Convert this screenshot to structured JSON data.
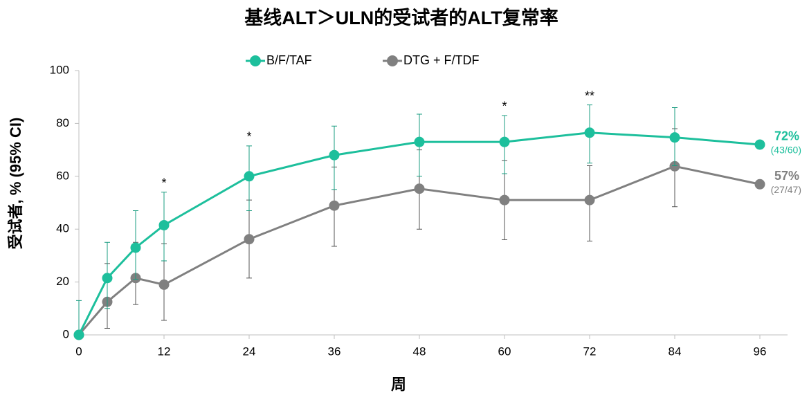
{
  "chart_data": {
    "type": "line",
    "title": "基线ALT＞ULN的受试者的ALT复常率",
    "x_label": "周",
    "y_label": "受试者, % (95% CI)",
    "x": [
      0,
      4,
      8,
      12,
      24,
      36,
      48,
      60,
      72,
      84,
      96
    ],
    "xlim": [
      0,
      100
    ],
    "xticks": [
      0,
      12,
      24,
      36,
      48,
      60,
      72,
      84,
      96
    ],
    "ylim": [
      0,
      100
    ],
    "yticks": [
      0,
      20,
      40,
      60,
      80,
      100
    ],
    "grid": false,
    "legend": "top",
    "series": [
      {
        "name": "B/F/TAF",
        "color": "#1dbf9c",
        "values": [
          0,
          21.5,
          33,
          41.5,
          60,
          68,
          73,
          73,
          76.5,
          74.7,
          72
        ],
        "ci_low": [
          0,
          10,
          21,
          28,
          47,
          55,
          60,
          61,
          65,
          64,
          null
        ],
        "ci_high": [
          13,
          35,
          47,
          54,
          71.5,
          79,
          83.5,
          83,
          87,
          86,
          null
        ],
        "end_label": "72%",
        "end_count": "(43/60)"
      },
      {
        "name": "DTG + F/TDF",
        "color": "#808080",
        "values": [
          0,
          12.5,
          21.5,
          19,
          36.2,
          48.9,
          55.3,
          51,
          51,
          63.8,
          57
        ],
        "ci_low": [
          0,
          2.5,
          11.5,
          5.5,
          21.5,
          33.5,
          40,
          36,
          35.5,
          48.5,
          null
        ],
        "ci_high": [
          0,
          27,
          35,
          34.5,
          51,
          63.5,
          70,
          66,
          64,
          78,
          null
        ],
        "end_label": "57%",
        "end_count": "(27/47)"
      }
    ],
    "annotations": [
      {
        "x": 12,
        "text": "*"
      },
      {
        "x": 24,
        "text": "*"
      },
      {
        "x": 60,
        "text": "*"
      },
      {
        "x": 72,
        "text": "**"
      }
    ]
  }
}
